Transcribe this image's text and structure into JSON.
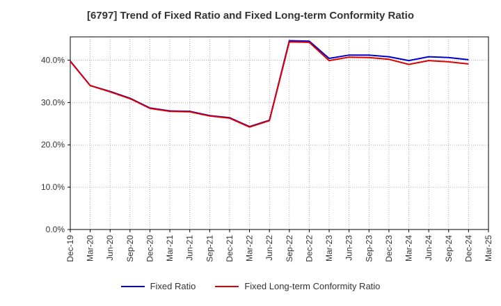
{
  "chart_data": {
    "type": "line",
    "title": "[6797]  Trend of Fixed Ratio and Fixed Long-term Conformity Ratio",
    "xlabel": "",
    "ylabel": "",
    "x": [
      "Dec-19",
      "Mar-20",
      "Jun-20",
      "Sep-20",
      "Dec-20",
      "Mar-21",
      "Jun-21",
      "Sep-21",
      "Dec-21",
      "Mar-22",
      "Jun-22",
      "Sep-22",
      "Dec-22",
      "Mar-23",
      "Jun-23",
      "Sep-23",
      "Dec-23",
      "Mar-24",
      "Jun-24",
      "Sep-24",
      "Dec-24"
    ],
    "tick_labels": [
      "Dec-19",
      "Mar-20",
      "Jun-20",
      "Sep-20",
      "Dec-20",
      "Mar-21",
      "Jun-21",
      "Sep-21",
      "Dec-21",
      "Mar-22",
      "Jun-22",
      "Sep-22",
      "Dec-22",
      "Mar-23",
      "Jun-23",
      "Sep-23",
      "Dec-23",
      "Mar-24",
      "Jun-24",
      "Sep-24",
      "Dec-24",
      "Mar-25"
    ],
    "yticks": [
      "0.0%",
      "10.0%",
      "20.0%",
      "30.0%",
      "40.0%"
    ],
    "ylim": [
      0,
      45.5
    ],
    "grid": true,
    "legend_position": "bottom",
    "series": [
      {
        "name": "Fixed Ratio",
        "color": "#0000cc",
        "values": [
          39.8,
          34.0,
          32.6,
          31.0,
          28.7,
          28.0,
          27.9,
          26.9,
          26.4,
          24.3,
          25.8,
          44.6,
          44.5,
          40.4,
          41.2,
          41.2,
          40.8,
          39.9,
          40.8,
          40.6,
          40.1
        ]
      },
      {
        "name": "Fixed Long-term Conformity Ratio",
        "color": "#dd0000",
        "values": [
          39.7,
          34.0,
          32.5,
          30.9,
          28.6,
          27.9,
          27.8,
          26.8,
          26.3,
          24.2,
          25.7,
          44.3,
          44.2,
          39.9,
          40.7,
          40.6,
          40.2,
          39.0,
          39.9,
          39.6,
          39.1
        ]
      }
    ]
  }
}
